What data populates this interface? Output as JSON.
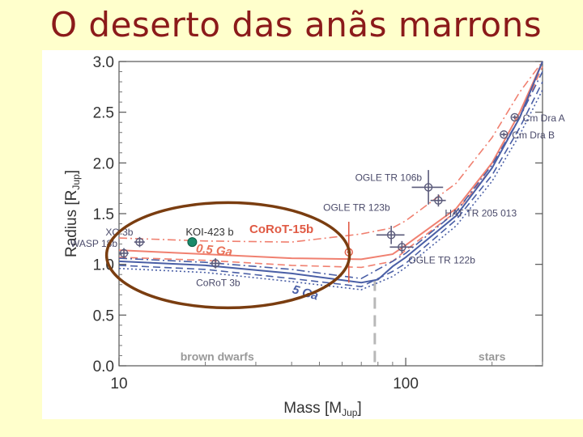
{
  "slide": {
    "title": "O deserto das anãs marrons"
  },
  "chart_data": {
    "type": "line",
    "xlabel": "Mass [M",
    "xlabel_sub": "Jup",
    "xlabel_end": "]",
    "ylabel": "Radius [R",
    "ylabel_sub": "Jup",
    "ylabel_end": "]",
    "x_scale": "log",
    "xlim": [
      10,
      300
    ],
    "ylim": [
      0.0,
      3.0
    ],
    "x_ticks": [
      10,
      100
    ],
    "x_tick_labels": [
      "10",
      "100"
    ],
    "y_ticks": [
      0.0,
      0.5,
      1.0,
      1.5,
      2.0,
      2.5,
      3.0
    ],
    "y_tick_labels": [
      "0.0",
      "0.5",
      "1.0",
      "1.5",
      "2.0",
      "2.5",
      "3.0"
    ],
    "region_labels": {
      "left": "brown dwarfs",
      "right": "stars"
    },
    "boundary_mass": 78,
    "curve_labels": [
      {
        "text": "0.5 Ga",
        "color": "#e8725a"
      },
      {
        "text": "5 Ga",
        "color": "#4a5fa6"
      }
    ],
    "highlight_label": {
      "text": "CoRoT-15b",
      "color": "#e05a44"
    },
    "series": [
      {
        "style": "solid",
        "color": "#f08070",
        "points": [
          [
            10,
            1.14
          ],
          [
            20,
            1.1
          ],
          [
            40,
            1.06
          ],
          [
            70,
            1.05
          ],
          [
            90,
            1.1
          ],
          [
            100,
            1.19
          ],
          [
            150,
            1.55
          ],
          [
            200,
            2.0
          ],
          [
            250,
            2.5
          ],
          [
            300,
            3.0
          ]
        ]
      },
      {
        "style": "dashdot",
        "color": "#f08070",
        "points": [
          [
            10,
            1.26
          ],
          [
            20,
            1.23
          ],
          [
            40,
            1.22
          ],
          [
            70,
            1.3
          ],
          [
            90,
            1.36
          ],
          [
            100,
            1.43
          ],
          [
            150,
            1.8
          ],
          [
            200,
            2.25
          ],
          [
            250,
            2.7
          ],
          [
            300,
            3.0
          ]
        ]
      },
      {
        "style": "dashed",
        "color": "#f08070",
        "points": [
          [
            10,
            1.07
          ],
          [
            20,
            1.04
          ],
          [
            40,
            0.99
          ],
          [
            70,
            0.97
          ],
          [
            90,
            1.03
          ],
          [
            100,
            1.14
          ],
          [
            150,
            1.52
          ],
          [
            200,
            1.95
          ],
          [
            250,
            2.45
          ],
          [
            300,
            2.95
          ]
        ]
      },
      {
        "style": "solid",
        "color": "#4a5fa6",
        "points": [
          [
            10,
            1.03
          ],
          [
            20,
            0.99
          ],
          [
            40,
            0.91
          ],
          [
            70,
            0.82
          ],
          [
            80,
            0.85
          ],
          [
            90,
            0.98
          ],
          [
            100,
            1.07
          ],
          [
            150,
            1.48
          ],
          [
            200,
            1.95
          ],
          [
            250,
            2.45
          ],
          [
            300,
            3.0
          ]
        ]
      },
      {
        "style": "dashdot",
        "color": "#4a5fa6",
        "points": [
          [
            10,
            1.06
          ],
          [
            20,
            1.02
          ],
          [
            40,
            0.95
          ],
          [
            70,
            0.86
          ],
          [
            90,
            1.03
          ],
          [
            100,
            1.11
          ],
          [
            150,
            1.52
          ],
          [
            200,
            1.98
          ],
          [
            250,
            2.45
          ],
          [
            300,
            2.9
          ]
        ]
      },
      {
        "style": "dashed",
        "color": "#4a5fa6",
        "points": [
          [
            10,
            0.99
          ],
          [
            20,
            0.95
          ],
          [
            40,
            0.86
          ],
          [
            70,
            0.78
          ],
          [
            90,
            0.93
          ],
          [
            100,
            1.01
          ],
          [
            150,
            1.44
          ],
          [
            200,
            1.88
          ],
          [
            250,
            2.35
          ],
          [
            300,
            2.8
          ]
        ]
      },
      {
        "style": "dotted",
        "color": "#4a5fa6",
        "points": [
          [
            10,
            0.96
          ],
          [
            20,
            0.92
          ],
          [
            40,
            0.83
          ],
          [
            70,
            0.75
          ],
          [
            90,
            0.88
          ],
          [
            100,
            0.97
          ],
          [
            150,
            1.38
          ],
          [
            200,
            1.82
          ],
          [
            250,
            2.28
          ],
          [
            300,
            2.72
          ]
        ]
      }
    ],
    "points": [
      {
        "name": "XO 3b",
        "mass": 11.8,
        "radius": 1.22,
        "xerr": 0.5,
        "yerr": 0.05,
        "label_pos": "left"
      },
      {
        "name": "WASP 18b",
        "mass": 10.4,
        "radius": 1.11,
        "xerr": 0.4,
        "yerr": 0.05,
        "label_pos": "left"
      },
      {
        "name": "CoRoT 3b",
        "mass": 21.7,
        "radius": 1.01,
        "xerr": 1.0,
        "yerr": 0.05,
        "label_pos": "below"
      },
      {
        "name": "CoRoT-15b",
        "mass": 63.3,
        "radius": 1.12,
        "xerr": 1.0,
        "yerr": 0.3,
        "label_pos": "none",
        "color": "#e05a44"
      },
      {
        "name": "OGLE TR 123b",
        "mass": 89,
        "radius": 1.29,
        "xerr": 10,
        "yerr": 0.09,
        "label_pos": "above"
      },
      {
        "name": "OGLE TR 122b",
        "mass": 97,
        "radius": 1.17,
        "xerr": 9,
        "yerr": 0.06,
        "label_pos": "below-right"
      },
      {
        "name": "OGLE TR 106b",
        "mass": 120,
        "radius": 1.76,
        "xerr": 15,
        "yerr": 0.17,
        "label_pos": "left"
      },
      {
        "name": "HAT TR 205 013",
        "mass": 130,
        "radius": 1.63,
        "xerr": 8,
        "yerr": 0.06,
        "label_pos": "below-right"
      },
      {
        "name": "Cm Dra A",
        "mass": 240,
        "radius": 2.45,
        "xerr": 5,
        "yerr": 0.02,
        "label_pos": "right"
      },
      {
        "name": "Cm Dra B",
        "mass": 220,
        "radius": 2.28,
        "xerr": 5,
        "yerr": 0.02,
        "label_pos": "right"
      }
    ],
    "overlay": {
      "point": {
        "name": "KOI-423 b",
        "mass": 18,
        "radius": 1.22,
        "color": "#1a8a6a"
      },
      "ellipse_color": "#7a3d10"
    }
  }
}
